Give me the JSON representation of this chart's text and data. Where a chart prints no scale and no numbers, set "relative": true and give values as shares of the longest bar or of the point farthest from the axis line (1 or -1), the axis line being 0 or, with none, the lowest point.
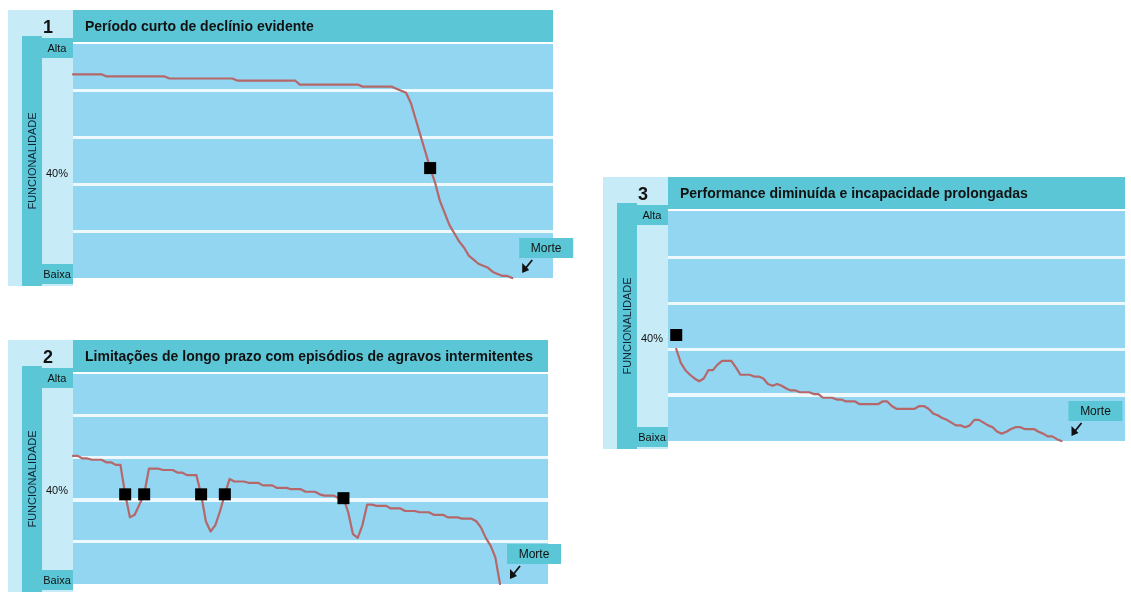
{
  "chart_data": [
    {
      "type": "line",
      "relative": true,
      "title": "Período curto de declínio evidente",
      "ylabel": "FUNCIONALIDADE",
      "annotations": [
        "1",
        "Alta",
        "40%",
        "Baixa",
        "Morte"
      ],
      "categories": [
        null,
        null,
        null,
        null,
        null,
        null,
        null,
        null,
        null,
        null,
        null,
        null,
        null,
        null,
        null,
        null,
        null,
        null,
        null,
        null,
        null,
        null,
        null,
        null,
        null,
        null,
        null,
        null,
        null,
        null,
        null,
        null,
        null,
        null,
        null,
        null,
        null,
        null,
        null,
        null,
        null,
        null,
        null,
        null,
        null,
        null,
        null,
        null,
        null,
        null,
        null,
        null,
        null,
        null,
        null,
        null,
        null,
        null,
        null,
        null,
        null,
        null,
        null,
        null,
        null,
        null,
        null,
        null,
        null,
        null,
        null,
        null,
        null,
        null,
        null,
        null,
        null,
        null,
        null,
        null,
        null,
        null,
        null,
        null,
        null,
        null,
        null,
        null,
        null,
        null,
        null,
        null
      ],
      "tick_labels": false,
      "series": [
        {
          "color": "#b5676a",
          "values": [
            1,
            1,
            1,
            1,
            1,
            1,
            1,
            0.99,
            0.99,
            0.99,
            0.99,
            0.99,
            0.99,
            0.99,
            0.99,
            0.99,
            0.99,
            0.99,
            0.99,
            0.99,
            0.98,
            0.98,
            0.98,
            0.98,
            0.98,
            0.98,
            0.98,
            0.98,
            0.98,
            0.98,
            0.98,
            0.98,
            0.98,
            0.98,
            0.97,
            0.97,
            0.97,
            0.97,
            0.97,
            0.97,
            0.97,
            0.97,
            0.97,
            0.97,
            0.97,
            0.97,
            0.97,
            0.95,
            0.95,
            0.95,
            0.95,
            0.95,
            0.95,
            0.95,
            0.95,
            0.95,
            0.95,
            0.95,
            0.95,
            0.95,
            0.94,
            0.94,
            0.94,
            0.94,
            0.94,
            0.94,
            0.94,
            0.93,
            0.92,
            0.91,
            0.86,
            0.78,
            0.7,
            0.62,
            0.54,
            0.47,
            0.38,
            0.32,
            0.26,
            0.22,
            0.18,
            0.15,
            0.11,
            0.09,
            0.07,
            0.06,
            0.05,
            0.03,
            0.02,
            0.01,
            0.01,
            0
          ]
        }
      ]
    },
    {
      "type": "line",
      "relative": true,
      "title": "Limitações de longo prazo com episódios de agravos intermitentes",
      "ylabel": "FUNCIONALIDADE",
      "annotations": [
        "2",
        "Alta",
        "40%",
        "Baixa",
        "Morte"
      ],
      "categories": [
        null,
        null,
        null,
        null,
        null,
        null,
        null,
        null,
        null,
        null,
        null,
        null,
        null,
        null,
        null,
        null,
        null,
        null,
        null,
        null,
        null,
        null,
        null,
        null,
        null,
        null,
        null,
        null,
        null,
        null,
        null,
        null,
        null,
        null,
        null,
        null,
        null,
        null,
        null,
        null,
        null,
        null,
        null,
        null,
        null,
        null,
        null,
        null,
        null,
        null,
        null,
        null,
        null,
        null,
        null,
        null,
        null,
        null,
        null,
        null,
        null,
        null,
        null,
        null,
        null,
        null,
        null,
        null,
        null,
        null,
        null,
        null,
        null,
        null,
        null,
        null,
        null,
        null,
        null,
        null,
        null,
        null,
        null,
        null,
        null,
        null,
        null,
        null,
        null,
        null,
        null
      ],
      "tick_labels": false,
      "series": [
        {
          "color": "#b5676a",
          "values": [
            1,
            1,
            0.98,
            0.98,
            0.97,
            0.97,
            0.97,
            0.95,
            0.95,
            0.93,
            0.93,
            0.7,
            0.52,
            0.54,
            0.62,
            0.7,
            0.9,
            0.9,
            0.9,
            0.89,
            0.89,
            0.89,
            0.87,
            0.87,
            0.85,
            0.85,
            0.85,
            0.7,
            0.49,
            0.41,
            0.46,
            0.57,
            0.7,
            0.82,
            0.8,
            0.8,
            0.8,
            0.79,
            0.79,
            0.79,
            0.77,
            0.77,
            0.77,
            0.75,
            0.75,
            0.75,
            0.74,
            0.74,
            0.74,
            0.72,
            0.72,
            0.72,
            0.7,
            0.69,
            0.69,
            0.69,
            0.67,
            0.67,
            0.56,
            0.39,
            0.36,
            0.46,
            0.62,
            0.62,
            0.61,
            0.61,
            0.61,
            0.59,
            0.59,
            0.59,
            0.57,
            0.57,
            0.57,
            0.56,
            0.56,
            0.56,
            0.54,
            0.54,
            0.54,
            0.52,
            0.52,
            0.52,
            0.51,
            0.51,
            0.51,
            0.49,
            0.44,
            0.36,
            0.3,
            0.21,
            0
          ]
        }
      ]
    },
    {
      "type": "line",
      "relative": true,
      "title": "Performance diminuída e incapacidade prolongadas",
      "ylabel": "FUNCIONALIDADE",
      "annotations": [
        "3",
        "Alta",
        "40%",
        "Baixa",
        "Morte"
      ],
      "categories": [
        null,
        null,
        null,
        null,
        null,
        null,
        null,
        null,
        null,
        null,
        null,
        null,
        null,
        null,
        null,
        null,
        null,
        null,
        null,
        null,
        null,
        null,
        null,
        null,
        null,
        null,
        null,
        null,
        null,
        null,
        null,
        null,
        null,
        null,
        null,
        null,
        null,
        null,
        null,
        null,
        null,
        null,
        null,
        null,
        null,
        null,
        null,
        null,
        null,
        null,
        null,
        null,
        null,
        null,
        null,
        null,
        null,
        null,
        null,
        null,
        null,
        null,
        null,
        null,
        null,
        null,
        null,
        null,
        null,
        null,
        null,
        null,
        null,
        null,
        null,
        null,
        null,
        null,
        null,
        null,
        null,
        null,
        null,
        null,
        null
      ],
      "tick_labels": false,
      "series": [
        {
          "color": "#b5676a",
          "values": [
            1,
            0.85,
            0.77,
            0.72,
            0.68,
            0.65,
            0.68,
            0.77,
            0.77,
            0.83,
            0.87,
            0.87,
            0.87,
            0.8,
            0.72,
            0.72,
            0.72,
            0.7,
            0.7,
            0.68,
            0.62,
            0.6,
            0.62,
            0.6,
            0.57,
            0.55,
            0.55,
            0.53,
            0.53,
            0.53,
            0.51,
            0.51,
            0.47,
            0.47,
            0.47,
            0.45,
            0.45,
            0.43,
            0.43,
            0.43,
            0.4,
            0.4,
            0.4,
            0.4,
            0.4,
            0.43,
            0.43,
            0.38,
            0.35,
            0.35,
            0.35,
            0.35,
            0.35,
            0.38,
            0.38,
            0.35,
            0.3,
            0.28,
            0.25,
            0.23,
            0.2,
            0.17,
            0.17,
            0.15,
            0.17,
            0.23,
            0.23,
            0.2,
            0.17,
            0.15,
            0.1,
            0.08,
            0.1,
            0.13,
            0.15,
            0.15,
            0.13,
            0.13,
            0.13,
            0.1,
            0.08,
            0.05,
            0.05,
            0.02,
            0
          ]
        }
      ]
    }
  ]
}
